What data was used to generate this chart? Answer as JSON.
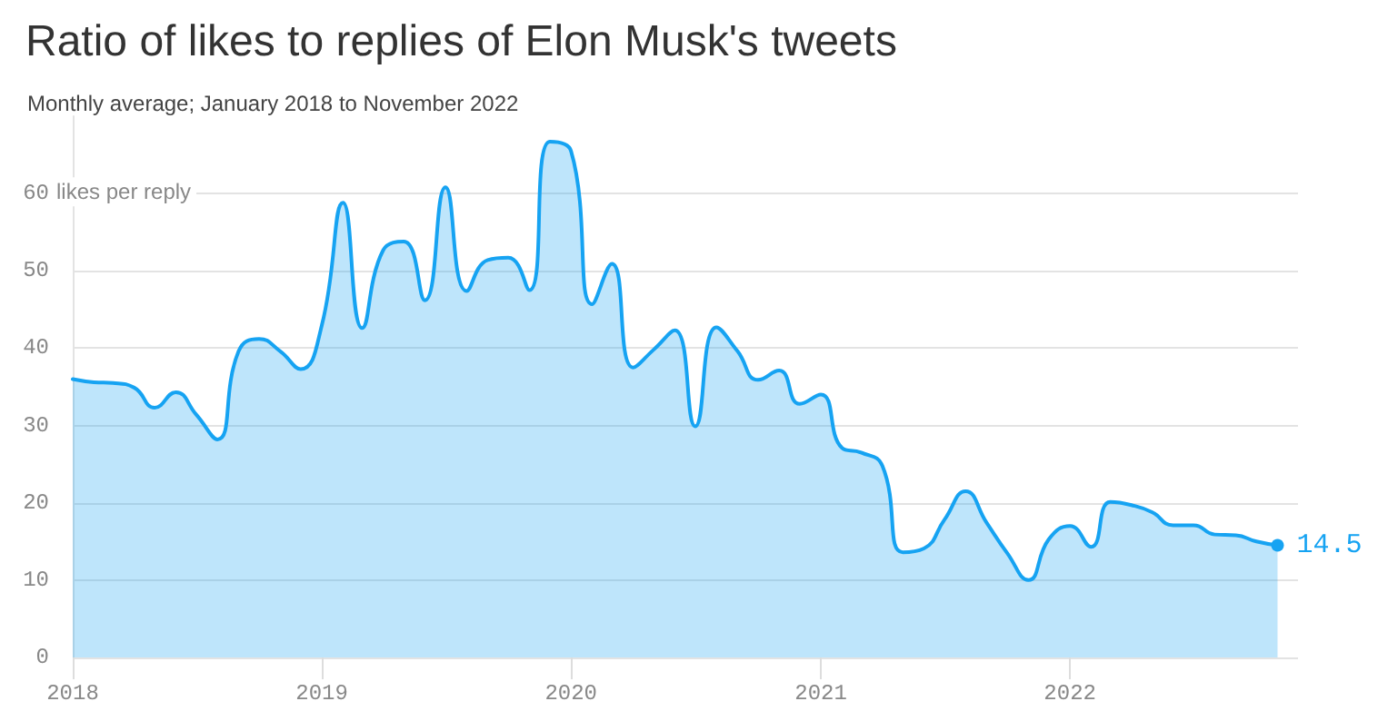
{
  "chart_data": {
    "type": "area",
    "title": "Ratio of likes to replies of Elon Musk's tweets",
    "subtitle": "Monthly average; January 2018 to November 2022",
    "ylabel": "likes per reply",
    "x": [
      "2018-01",
      "2018-02",
      "2018-03",
      "2018-04",
      "2018-05",
      "2018-06",
      "2018-07",
      "2018-08",
      "2018-09",
      "2018-10",
      "2018-11",
      "2018-12",
      "2019-01",
      "2019-02",
      "2019-03",
      "2019-04",
      "2019-05",
      "2019-06",
      "2019-07",
      "2019-08",
      "2019-09",
      "2019-10",
      "2019-11",
      "2019-12",
      "2020-01",
      "2020-02",
      "2020-03",
      "2020-04",
      "2020-05",
      "2020-06",
      "2020-07",
      "2020-08",
      "2020-09",
      "2020-10",
      "2020-11",
      "2020-12",
      "2021-01",
      "2021-02",
      "2021-03",
      "2021-04",
      "2021-05",
      "2021-06",
      "2021-07",
      "2021-08",
      "2021-09",
      "2021-10",
      "2021-11",
      "2021-12",
      "2022-01",
      "2022-02",
      "2022-03",
      "2022-04",
      "2022-05",
      "2022-06",
      "2022-07",
      "2022-08",
      "2022-09",
      "2022-10",
      "2022-11"
    ],
    "series": [
      {
        "color": "#16a3f2",
        "values": [
          36,
          35.6,
          35.5,
          34.9,
          32.3,
          34.3,
          31.4,
          28.2,
          39.6,
          41.2,
          39.6,
          37.3,
          43,
          58.8,
          42.6,
          52.7,
          53.8,
          46.2,
          60.8,
          47.4,
          51.4,
          51.7,
          47.5,
          66.7,
          65.5,
          45.7,
          50.9,
          37.5,
          39.8,
          42.3,
          29.9,
          42.7,
          39.6,
          35.9,
          37.1,
          32.8,
          34,
          27.1,
          26.5,
          24.8,
          13.6,
          14.1,
          17.8,
          21.5,
          17.4,
          13.5,
          10,
          15.3,
          17,
          14.3,
          20.1,
          19.7,
          18.8,
          17.1,
          17.1,
          15.9,
          15.8,
          15,
          14.5
        ],
        "value_labels": [
          null,
          null,
          null,
          null,
          null,
          null,
          null,
          null,
          null,
          null,
          null,
          null,
          null,
          null,
          null,
          null,
          null,
          null,
          null,
          null,
          null,
          null,
          null,
          null,
          null,
          null,
          null,
          null,
          null,
          null,
          null,
          null,
          null,
          null,
          null,
          null,
          null,
          null,
          null,
          null,
          null,
          null,
          null,
          null,
          null,
          null,
          null,
          null,
          null,
          null,
          null,
          null,
          null,
          null,
          null,
          null,
          null,
          null,
          "14.5"
        ]
      }
    ],
    "xlim": [
      "2018-01",
      "2022-12"
    ],
    "xticks": [
      "2018",
      "2019",
      "2020",
      "2021",
      "2022"
    ],
    "ylim": [
      0,
      70
    ],
    "yticks": [
      0,
      10,
      20,
      30,
      40,
      50,
      60
    ],
    "grid": "y",
    "marker": "none"
  }
}
